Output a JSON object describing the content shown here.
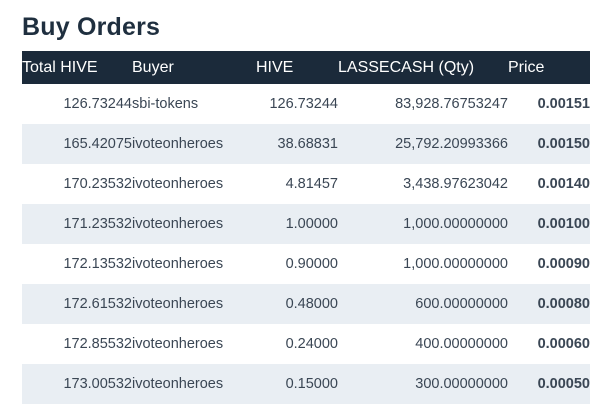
{
  "title": "Buy Orders",
  "columns": {
    "total": "Total HIVE",
    "buyer": "Buyer",
    "hive": "HIVE",
    "qty": "LASSECASH (Qty)",
    "price": "Price"
  },
  "rows": [
    {
      "total": "126.73244",
      "buyer": "sbi-tokens",
      "hive": "126.73244",
      "qty": "83,928.76753247",
      "price": "0.00151"
    },
    {
      "total": "165.42075",
      "buyer": "ivoteonheroes",
      "hive": "38.68831",
      "qty": "25,792.20993366",
      "price": "0.00150"
    },
    {
      "total": "170.23532",
      "buyer": "ivoteonheroes",
      "hive": "4.81457",
      "qty": "3,438.97623042",
      "price": "0.00140"
    },
    {
      "total": "171.23532",
      "buyer": "ivoteonheroes",
      "hive": "1.00000",
      "qty": "1,000.00000000",
      "price": "0.00100"
    },
    {
      "total": "172.13532",
      "buyer": "ivoteonheroes",
      "hive": "0.90000",
      "qty": "1,000.00000000",
      "price": "0.00090"
    },
    {
      "total": "172.61532",
      "buyer": "ivoteonheroes",
      "hive": "0.48000",
      "qty": "600.00000000",
      "price": "0.00080"
    },
    {
      "total": "172.85532",
      "buyer": "ivoteonheroes",
      "hive": "0.24000",
      "qty": "400.00000000",
      "price": "0.00060"
    },
    {
      "total": "173.00532",
      "buyer": "ivoteonheroes",
      "hive": "0.15000",
      "qty": "300.00000000",
      "price": "0.00050"
    }
  ],
  "colors": {
    "header_bg": "#1b2a3a",
    "stripe_bg": "#e9eef3",
    "title_text": "#1f2f3f"
  }
}
